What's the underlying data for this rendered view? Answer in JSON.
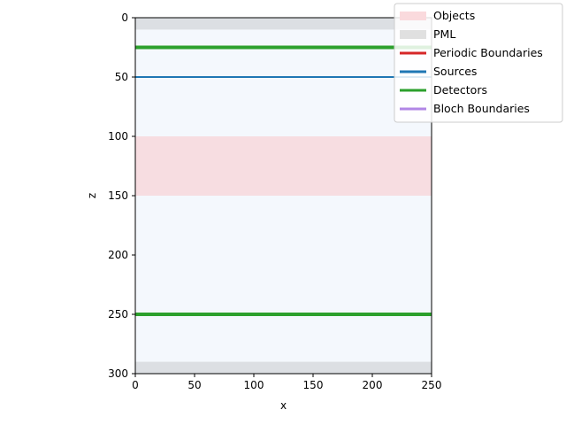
{
  "chart_data": {
    "type": "area",
    "title": "",
    "xlabel": "x",
    "ylabel": "z",
    "xlim": [
      0,
      250
    ],
    "ylim": [
      300,
      0
    ],
    "y_inverted": true,
    "xticks": [
      0,
      50,
      100,
      150,
      200,
      250
    ],
    "yticks": [
      0,
      50,
      100,
      150,
      200,
      250,
      300
    ],
    "background_color": "#f4f8fd",
    "grid": false,
    "legend_position": "upper-right",
    "regions": [
      {
        "label": "PML",
        "z_start": 0,
        "z_end": 10,
        "color": "#dcdfe3"
      },
      {
        "label": "Objects",
        "z_start": 100,
        "z_end": 150,
        "color": "#f7dde1"
      },
      {
        "label": "PML",
        "z_start": 290,
        "z_end": 300,
        "color": "#dcdfe3"
      }
    ],
    "lines": [
      {
        "label": "Detectors",
        "z": 25,
        "color": "#2ca02c",
        "weight": "thick"
      },
      {
        "label": "Sources",
        "z": 50,
        "color": "#1f77b4",
        "weight": "thin"
      },
      {
        "label": "Detectors",
        "z": 250,
        "color": "#2ca02c",
        "weight": "thick"
      }
    ],
    "legend": [
      {
        "label": "Objects",
        "color": "#fadadd",
        "style": "band"
      },
      {
        "label": "PML",
        "color": "#e0e0e0",
        "style": "band"
      },
      {
        "label": "Periodic Boundaries",
        "color": "#d62728",
        "style": "line"
      },
      {
        "label": "Sources",
        "color": "#1f77b4",
        "style": "line"
      },
      {
        "label": "Detectors",
        "color": "#2ca02c",
        "style": "line"
      },
      {
        "label": "Bloch Boundaries",
        "color": "#b186e6",
        "style": "line"
      }
    ]
  }
}
